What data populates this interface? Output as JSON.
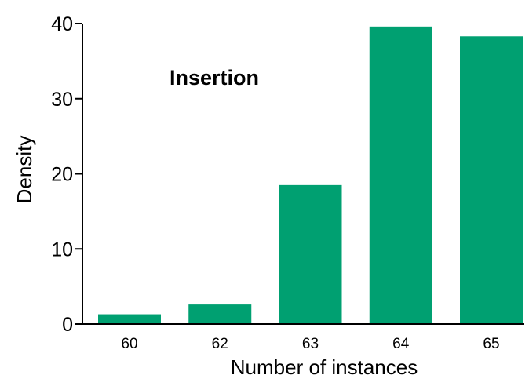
{
  "chart_data": {
    "type": "bar",
    "categories": [
      "60",
      "62",
      "63",
      "64",
      "65"
    ],
    "values": [
      1.3,
      2.6,
      18.5,
      39.6,
      38.3
    ],
    "title": "",
    "annotation": "Insertion",
    "xlabel": "Number of instances",
    "ylabel": "Density",
    "ylim": [
      0,
      40
    ],
    "yticks": [
      "0",
      "10",
      "20",
      "30",
      "40"
    ],
    "grid": false,
    "bar_color": "#00a071"
  }
}
